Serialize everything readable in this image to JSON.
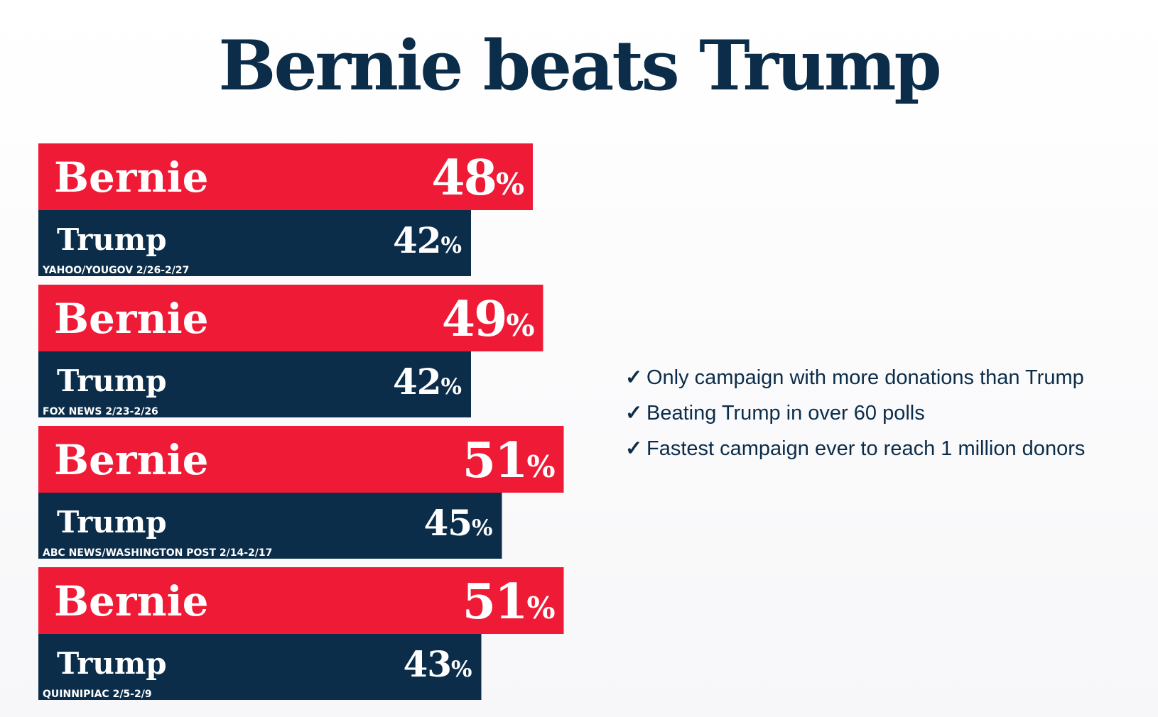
{
  "title": "Bernie beats Trump",
  "colors": {
    "bernie": "#ee1a36",
    "trump": "#0b2d4a",
    "title": "#0b2d4a"
  },
  "chart_data": {
    "type": "bar",
    "orientation": "horizontal",
    "series_labels": [
      "Bernie",
      "Trump"
    ],
    "polls": [
      {
        "source": "YAHOO/YOUGOV 2/26-2/27",
        "bernie": 48,
        "trump": 42
      },
      {
        "source": "FOX NEWS 2/23-2/26",
        "bernie": 49,
        "trump": 42
      },
      {
        "source": "ABC NEWS/WASHINGTON POST 2/14-2/17",
        "bernie": 51,
        "trump": 45
      },
      {
        "source": "QUINNIPIAC 2/5-2/9",
        "bernie": 51,
        "trump": 43
      }
    ],
    "unit": "%"
  },
  "bullets": [
    {
      "icon": "check-icon",
      "text": "Only campaign with more donations than Trump"
    },
    {
      "icon": "check-icon",
      "text": "Beating Trump in over 60 polls"
    },
    {
      "icon": "check-icon",
      "text": "Fastest campaign ever to reach 1 million donors"
    }
  ]
}
